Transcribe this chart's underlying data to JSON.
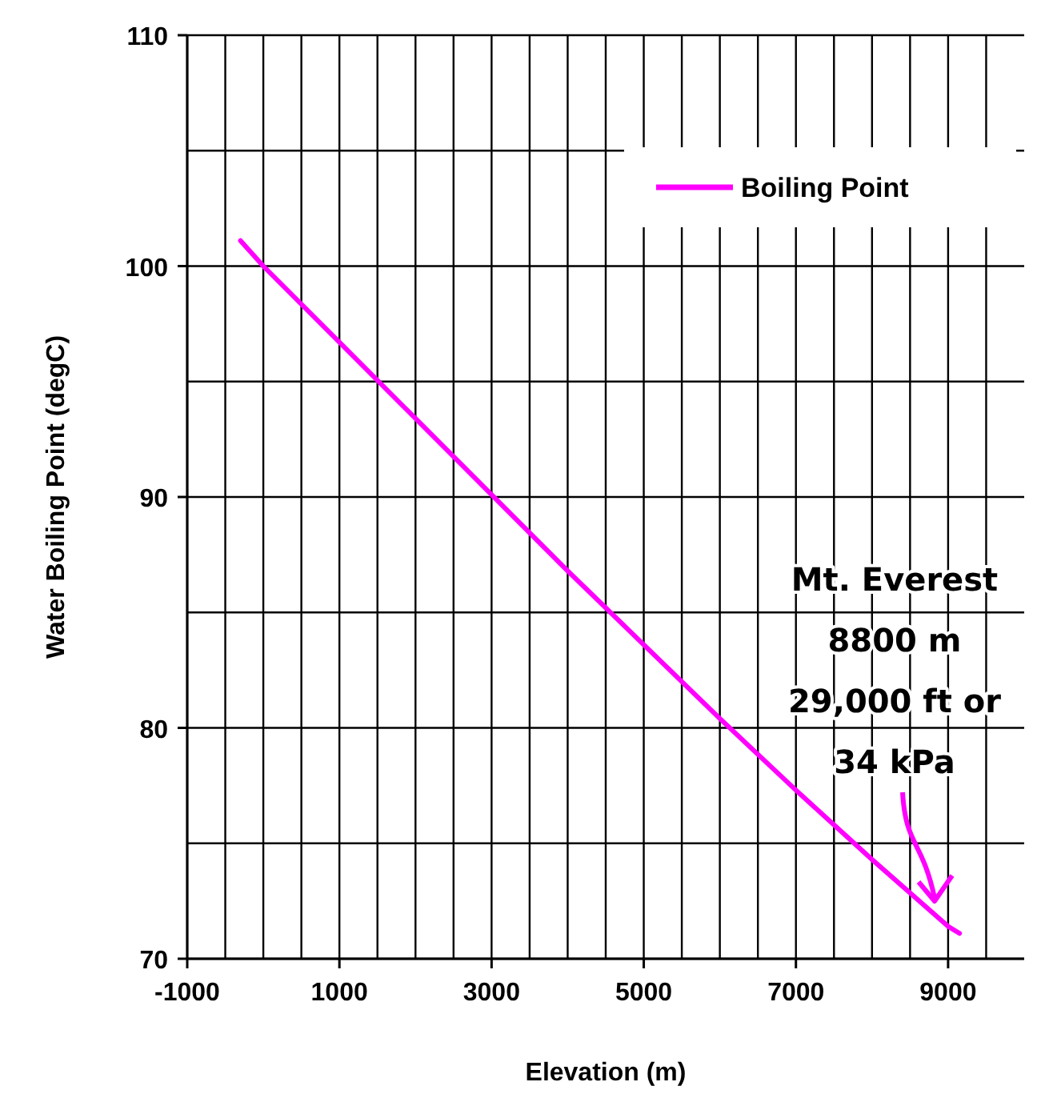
{
  "chart_data": {
    "type": "line",
    "xlabel": "Elevation (m)",
    "ylabel": "Water Boiling Point (degC)",
    "x": [
      -300,
      0,
      1000,
      2000,
      3000,
      4000,
      5000,
      6000,
      7000,
      8000,
      9000,
      9150
    ],
    "series": [
      {
        "name": "Boiling Point",
        "color": "#ff00ff",
        "values": [
          101.1,
          100,
          96.7,
          93.4,
          90.1,
          86.8,
          83.6,
          80.4,
          77.3,
          74.3,
          71.4,
          71.1
        ]
      }
    ],
    "xlim": [
      -1000,
      10000
    ],
    "xticks": [
      -1000,
      {
        "value": -500,
        "label": null
      },
      {
        "value": 0,
        "label": null
      },
      {
        "value": 500,
        "label": null
      },
      1000,
      {
        "value": 1500,
        "label": null
      },
      {
        "value": 2000,
        "label": null
      },
      {
        "value": 2500,
        "label": null
      },
      3000,
      {
        "value": 3500,
        "label": null
      },
      {
        "value": 4000,
        "label": null
      },
      {
        "value": 4500,
        "label": null
      },
      5000,
      {
        "value": 5500,
        "label": null
      },
      {
        "value": 6000,
        "label": null
      },
      {
        "value": 6500,
        "label": null
      },
      7000,
      {
        "value": 7500,
        "label": null
      },
      {
        "value": 8000,
        "label": null
      },
      {
        "value": 8500,
        "label": null
      },
      9000,
      {
        "value": 9500,
        "label": null
      }
    ],
    "ylim": [
      70,
      110
    ],
    "yticks": [
      70,
      {
        "value": 75,
        "label": null
      },
      80,
      {
        "value": 85,
        "label": null
      },
      90,
      {
        "value": 95,
        "label": null
      },
      100,
      {
        "value": 105,
        "label": null
      },
      110
    ],
    "grid": true,
    "legend": "top right",
    "marker": "none",
    "line_style": "solid",
    "annotations": [
      "Mt. Everest\n8800 m\n29,000 ft or\n34 kPa"
    ]
  }
}
